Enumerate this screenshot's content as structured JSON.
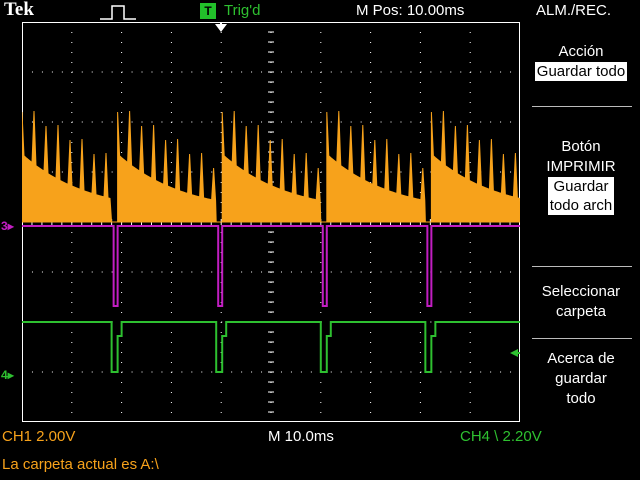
{
  "header": {
    "brand": "Tek",
    "trigger_icon": "T",
    "trigger_status": "Trig'd",
    "position": "M Pos: 10.00ms",
    "menu_title": "ALM./REC."
  },
  "menu": {
    "action_label": "Acción",
    "action_value": "Guardar todo",
    "print_button_line1": "Botón",
    "print_button_line2": "IMPRIMIR",
    "print_button_value_line1": "Guardar",
    "print_button_value_line2": "todo arch",
    "select_folder_line1": "Seleccionar",
    "select_folder_line2": "carpeta",
    "about_line1": "Acerca de",
    "about_line2": "guardar",
    "about_line3": "todo"
  },
  "status": {
    "ch1": "CH1  2.00V",
    "timebase": "M 10.0ms",
    "ch4": "CH4 \\ 2.20V",
    "message": "La carpeta actual es A:\\"
  },
  "markers": {
    "ch3": "3",
    "ch4": "4"
  },
  "colors": {
    "ch1": "#f7a21b",
    "ch3": "#c21ec2",
    "ch4": "#2ec030",
    "grid": "#ffffff"
  },
  "chart_data": {
    "type": "line",
    "title": "",
    "xlabel": "time (10.0ms/div)",
    "ylabel": "",
    "x_divisions": 10,
    "y_divisions": 8,
    "series": [
      {
        "name": "CH1",
        "scale": "2.00V/div",
        "pattern": "decaying sawtooth bursts",
        "burst_period_divisions": 2.1
      },
      {
        "name": "CH3",
        "pattern": "negative pulses",
        "pulse_positions_divisions": [
          1.9,
          4.0,
          6.1,
          8.2
        ]
      },
      {
        "name": "CH4",
        "scale": "2.20V trigger",
        "pattern": "negative pulses",
        "pulse_positions_divisions": [
          1.9,
          4.0,
          6.1,
          8.2
        ]
      }
    ]
  }
}
